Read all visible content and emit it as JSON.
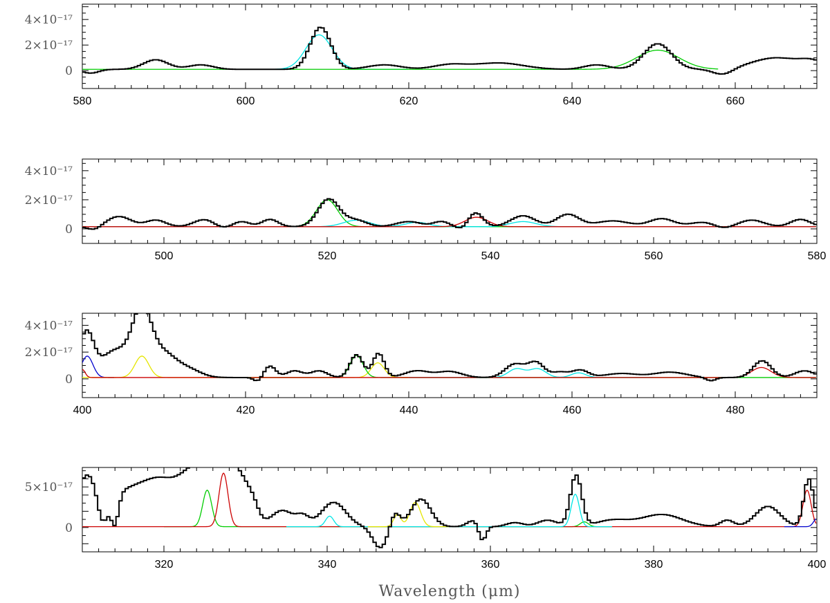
{
  "chart_data": [
    {
      "type": "line",
      "xlim": [
        580,
        670
      ],
      "ylim": [
        -1.4,
        5.2
      ],
      "x_ticks": [
        580,
        600,
        620,
        640,
        660
      ],
      "y_ticks": [
        {
          "value": 0,
          "label": "0"
        },
        {
          "value": 2,
          "label": "2×10⁻¹⁷"
        },
        {
          "value": 4,
          "label": "4×10⁻¹⁷"
        }
      ],
      "grid": false,
      "baseline": 0.1,
      "spectrum_features": [
        [
          589,
          0.75,
          1.5
        ],
        [
          594.5,
          0.35,
          1.5
        ],
        [
          609.2,
          3.3,
          1.25
        ],
        [
          617,
          0.35,
          2
        ],
        [
          625,
          0.35,
          2
        ],
        [
          631,
          0.5,
          3
        ],
        [
          643,
          0.35,
          1.5
        ],
        [
          650.5,
          2.0,
          1.7
        ],
        [
          665,
          0.9,
          3
        ],
        [
          669.5,
          0.5,
          1.5
        ]
      ],
      "spectrum_dips": [
        [
          581,
          -0.3,
          1
        ],
        [
          658.5,
          -0.45,
          1.2
        ]
      ],
      "series": [
        {
          "color": "#00e5e5",
          "lines": [
            [
              609.0,
              2.7,
              1.6
            ]
          ],
          "range": [
            600,
            620
          ]
        },
        {
          "color": "#00cc00",
          "lines": [
            [
              650.5,
              1.5,
              2.6
            ]
          ],
          "range": [
            580,
            658
          ]
        }
      ]
    },
    {
      "type": "line",
      "xlim": [
        490,
        580
      ],
      "ylim": [
        -1.0,
        4.8
      ],
      "x_ticks": [
        500,
        520,
        540,
        560,
        580
      ],
      "y_ticks": [
        {
          "value": 0,
          "label": "0"
        },
        {
          "value": 2,
          "label": "2×10⁻¹⁷"
        },
        {
          "value": 4,
          "label": "4×10⁻¹⁷"
        }
      ],
      "grid": false,
      "baseline": 0.15,
      "spectrum_features": [
        [
          494.5,
          0.7,
          1.5
        ],
        [
          499,
          0.45,
          1.2
        ],
        [
          505,
          0.5,
          1.3
        ],
        [
          509.5,
          0.35,
          1
        ],
        [
          513,
          0.5,
          1
        ],
        [
          520.2,
          1.9,
          1.3
        ],
        [
          523.5,
          0.45,
          1.3
        ],
        [
          530,
          0.35,
          1.5
        ],
        [
          534,
          0.35,
          1
        ],
        [
          538.2,
          0.95,
          0.9
        ],
        [
          544,
          0.75,
          1.5
        ],
        [
          549.5,
          0.85,
          1.4
        ],
        [
          555,
          0.4,
          2
        ],
        [
          561,
          0.55,
          1.5
        ],
        [
          566,
          0.3,
          1.5
        ],
        [
          572,
          0.45,
          1.5
        ],
        [
          578,
          0.5,
          1.2
        ]
      ],
      "spectrum_dips": [
        [
          491.5,
          -0.25,
          0.8
        ],
        [
          507,
          -0.15,
          1
        ],
        [
          536.5,
          -0.2,
          0.7
        ],
        [
          568.5,
          -0.15,
          1
        ]
      ],
      "series": [
        {
          "color": "#00cc00",
          "lines": [
            [
              520.0,
              1.85,
              1.3
            ]
          ],
          "range": [
            490,
            580
          ]
        },
        {
          "color": "#00e5e5",
          "lines": [
            [
              523.6,
              0.45,
              1.6
            ],
            [
              531.0,
              0.3,
              1.4
            ],
            [
              544.0,
              0.35,
              1.6
            ]
          ],
          "range": [
            490,
            580
          ]
        },
        {
          "color": "#cc0000",
          "lines": [
            [
              538.3,
              0.65,
              1.4
            ]
          ],
          "range": [
            490,
            580
          ]
        }
      ]
    },
    {
      "type": "line",
      "xlim": [
        400,
        490
      ],
      "ylim": [
        -1.4,
        4.9
      ],
      "x_ticks": [
        400,
        420,
        440,
        460,
        480
      ],
      "y_ticks": [
        {
          "value": 0,
          "label": "0"
        },
        {
          "value": 2,
          "label": "2×10⁻¹⁷"
        },
        {
          "value": 4,
          "label": "4×10⁻¹⁷"
        }
      ],
      "grid": false,
      "baseline": 0.1,
      "spectrum_features": [
        [
          400.5,
          3.3,
          0.9
        ],
        [
          404,
          2.0,
          1.7
        ],
        [
          407.3,
          4.8,
          1.2
        ],
        [
          410,
          1.7,
          1.5
        ],
        [
          413,
          0.6,
          1.5
        ],
        [
          423,
          0.85,
          0.7
        ],
        [
          426,
          0.5,
          1
        ],
        [
          429,
          0.5,
          1
        ],
        [
          433.6,
          1.7,
          0.8
        ],
        [
          436.3,
          1.8,
          0.7
        ],
        [
          441,
          0.5,
          1.5
        ],
        [
          445,
          0.45,
          1.5
        ],
        [
          453,
          1.0,
          1.2
        ],
        [
          455.6,
          1.1,
          1
        ],
        [
          458.5,
          0.4,
          1
        ],
        [
          461,
          0.55,
          1
        ],
        [
          466,
          0.3,
          2
        ],
        [
          472,
          0.4,
          2
        ],
        [
          483.3,
          1.25,
          1.1
        ],
        [
          488.5,
          0.5,
          1.2
        ]
      ],
      "spectrum_dips": [
        [
          421.5,
          -0.3,
          0.5
        ],
        [
          477,
          -0.25,
          0.6
        ]
      ],
      "series": [
        {
          "color": "#0000cc",
          "lines": [
            [
              400.6,
              1.6,
              0.7
            ]
          ],
          "range": [
            400,
            404
          ]
        },
        {
          "color": "#e5e500",
          "lines": [
            [
              407.3,
              1.6,
              0.85
            ],
            [
              436.2,
              1.1,
              0.8
            ]
          ],
          "range": [
            400,
            440
          ]
        },
        {
          "color": "#00cc00",
          "lines": [
            [
              433.6,
              1.65,
              0.8
            ]
          ],
          "range": [
            420,
            490
          ]
        },
        {
          "color": "#00e5e5",
          "lines": [
            [
              453.2,
              0.65,
              1.0
            ],
            [
              455.8,
              0.65,
              1.0
            ],
            [
              460.8,
              0.35,
              0.9
            ]
          ],
          "range": [
            440,
            470
          ]
        },
        {
          "color": "#cc0000",
          "lines": [
            [
              400.0,
              0.6,
              0.35
            ],
            [
              483.2,
              0.75,
              1.2
            ]
          ],
          "range": [
            400,
            490
          ]
        }
      ]
    },
    {
      "type": "line",
      "xlim": [
        310,
        400
      ],
      "ylim": [
        -3.0,
        7.4
      ],
      "x_ticks": [
        320,
        340,
        360,
        380,
        400
      ],
      "y_ticks": [
        {
          "value": 0,
          "label": "0"
        },
        {
          "value": 5,
          "label": "5×10⁻¹⁷"
        }
      ],
      "grid": false,
      "baseline": 0.1,
      "xlabel": "Wavelength (μm)",
      "spectrum_features": [
        [
          310.5,
          5.5,
          1.2
        ],
        [
          315.5,
          4.2,
          2.8
        ],
        [
          320,
          4.5,
          2.2
        ],
        [
          323.5,
          4.8,
          1.6
        ],
        [
          326.5,
          9.0,
          1.6
        ],
        [
          329.5,
          5.0,
          1.3
        ],
        [
          331,
          1.0,
          0.6
        ],
        [
          334.5,
          2.0,
          1.3
        ],
        [
          337,
          1.2,
          0.8
        ],
        [
          340.8,
          3.0,
          1.5
        ],
        [
          348.3,
          1.8,
          0.6
        ],
        [
          351.5,
          3.4,
          1.2
        ],
        [
          358,
          0.8,
          0.8
        ],
        [
          363,
          0.5,
          1
        ],
        [
          367,
          0.8,
          1.2
        ],
        [
          370.5,
          6.3,
          0.7
        ],
        [
          375,
          0.8,
          2
        ],
        [
          381,
          1.5,
          2.5
        ],
        [
          389,
          0.8,
          0.8
        ],
        [
          394,
          2.5,
          1.5
        ],
        [
          399,
          5.9,
          0.6
        ]
      ],
      "spectrum_dips": [
        [
          312.5,
          -3.0,
          0.6
        ],
        [
          314,
          -3.5,
          0.45
        ],
        [
          346.5,
          -2.6,
          0.9
        ],
        [
          359,
          -2.0,
          0.45
        ]
      ],
      "series": [
        {
          "color": "#00cc00",
          "lines": [
            [
              325.3,
              4.5,
              0.55
            ],
            [
              371.5,
              0.6,
              0.5
            ]
          ],
          "range": [
            320,
            375
          ]
        },
        {
          "color": "#cc0000",
          "lines": [
            [
              327.3,
              6.6,
              0.55
            ],
            [
              398.8,
              4.5,
              0.5
            ]
          ],
          "range": [
            310,
            400
          ]
        },
        {
          "color": "#00e5e5",
          "lines": [
            [
              340.3,
              1.3,
              0.5
            ],
            [
              370.4,
              4.0,
              0.5
            ]
          ],
          "range": [
            335,
            375
          ]
        },
        {
          "color": "#e5e500",
          "lines": [
            [
              348.6,
              1.5,
              0.45
            ],
            [
              350.8,
              3.0,
              0.65
            ]
          ],
          "range": [
            345,
            355
          ]
        },
        {
          "color": "#0000cc",
          "lines": [
            [
              400.0,
              1.0,
              0.4
            ]
          ],
          "range": [
            396,
            400
          ]
        }
      ]
    }
  ]
}
